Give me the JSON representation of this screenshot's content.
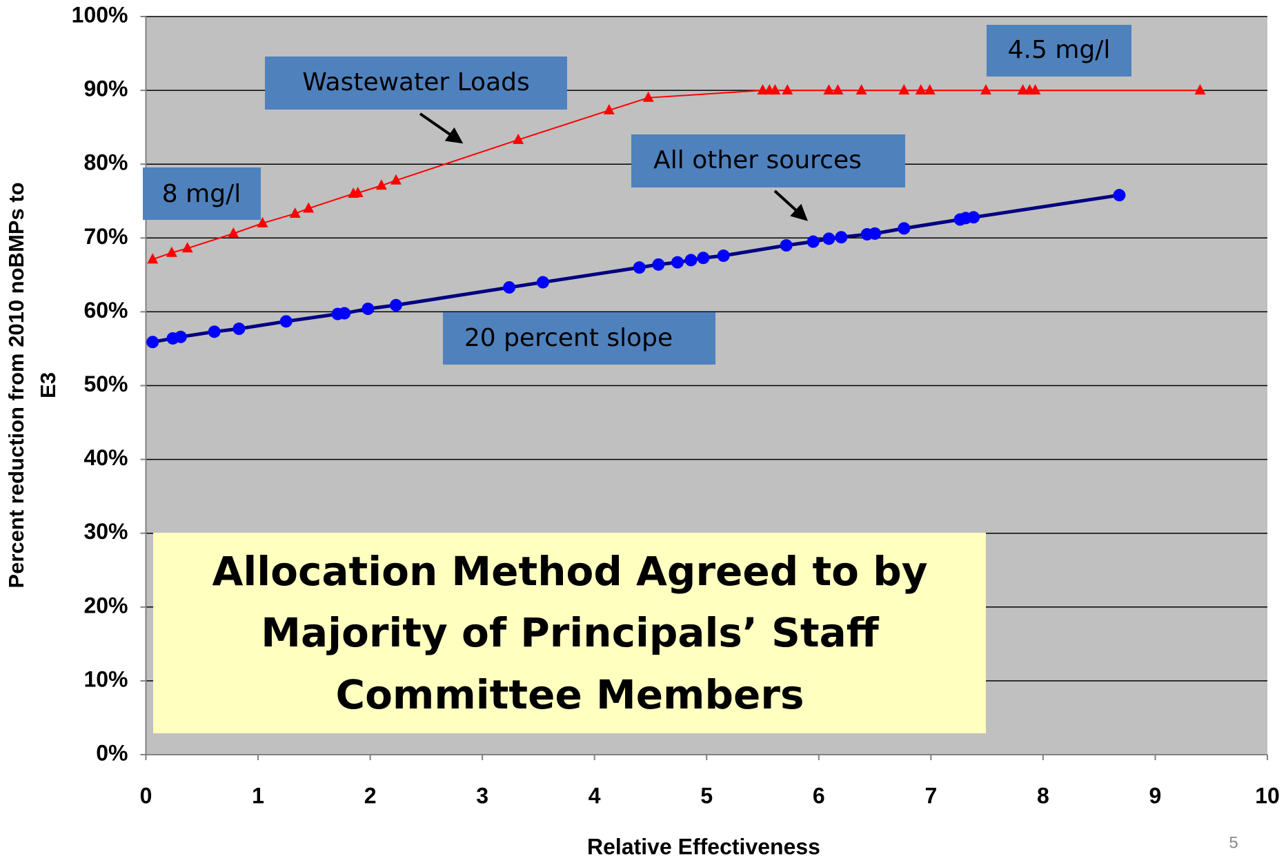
{
  "chart_data": {
    "type": "line",
    "x_label": "Relative Effectiveness",
    "ylabel_lines": [
      "Percent reduction from 2010 noBMPs to",
      "E3"
    ],
    "xlim": [
      0,
      10
    ],
    "xticks": [
      0,
      1,
      2,
      3,
      4,
      5,
      6,
      7,
      8,
      9,
      10
    ],
    "ylim": [
      0,
      100
    ],
    "yticks": [
      {
        "value": 0,
        "label": "0%"
      },
      {
        "value": 10,
        "label": "10%"
      },
      {
        "value": 20,
        "label": "20%"
      },
      {
        "value": 30,
        "label": "30%"
      },
      {
        "value": 40,
        "label": "40%"
      },
      {
        "value": 50,
        "label": "50%"
      },
      {
        "value": 60,
        "label": "60%"
      },
      {
        "value": 70,
        "label": "70%"
      },
      {
        "value": 80,
        "label": "80%"
      },
      {
        "value": 90,
        "label": "90%"
      },
      {
        "value": 100,
        "label": "100%"
      }
    ],
    "grid": true,
    "series": [
      {
        "color": "#ff0000",
        "marker": "triangle",
        "x": [
          0.06,
          0.23,
          0.37,
          0.78,
          1.04,
          1.33,
          1.45,
          1.85,
          1.89,
          2.1,
          2.23,
          3.32,
          4.13,
          4.48,
          5.5,
          5.56,
          5.61,
          5.72,
          6.09,
          6.17,
          6.38,
          6.76,
          6.91,
          6.99,
          7.49,
          7.82,
          7.88,
          7.93,
          9.4
        ],
        "values": [
          67.1,
          68.0,
          68.6,
          70.6,
          72.0,
          73.3,
          74.0,
          76.0,
          76.1,
          77.1,
          77.8,
          83.3,
          87.3,
          89.0,
          90,
          90,
          90,
          90,
          90,
          90,
          90,
          90,
          90,
          90,
          90,
          90,
          90,
          90,
          90
        ]
      },
      {
        "color": "#0000ff",
        "line_color": "#000080",
        "marker": "circle",
        "x": [
          0.06,
          0.24,
          0.31,
          0.61,
          0.83,
          1.25,
          1.71,
          1.77,
          1.98,
          2.23,
          3.24,
          3.54,
          4.4,
          4.57,
          4.74,
          4.86,
          4.97,
          5.15,
          5.71,
          5.95,
          6.09,
          6.2,
          6.43,
          6.5,
          6.76,
          7.26,
          7.31,
          7.38,
          8.68
        ],
        "values": [
          55.9,
          56.4,
          56.6,
          57.3,
          57.7,
          58.7,
          59.7,
          59.8,
          60.4,
          60.9,
          63.3,
          64.0,
          66.0,
          66.4,
          66.7,
          67.0,
          67.3,
          67.6,
          69.0,
          69.5,
          69.9,
          70.1,
          70.5,
          70.6,
          71.3,
          72.5,
          72.7,
          72.8,
          75.8
        ]
      }
    ],
    "annotations": [
      "Wastewater Loads",
      "4.5 mg/l",
      "8 mg/l",
      "All other sources",
      "20 percent slope"
    ],
    "callout_lines": [
      "Allocation Method Agreed to by",
      "Majority of Principals’ Staff",
      "Committee Members"
    ],
    "slide_number": "5"
  }
}
